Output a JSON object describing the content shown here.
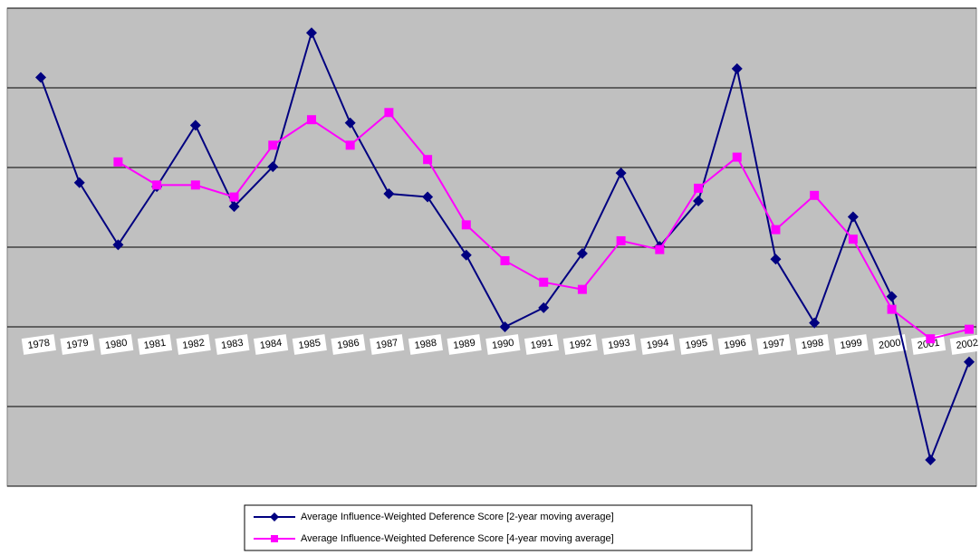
{
  "chart_data": {
    "type": "line",
    "categories": [
      "1978",
      "1979",
      "1980",
      "1981",
      "1982",
      "1983",
      "1984",
      "1985",
      "1986",
      "1987",
      "1988",
      "1989",
      "1990",
      "1991",
      "1992",
      "1993",
      "1994",
      "1995",
      "1996",
      "1997",
      "1998",
      "1999",
      "2000",
      "2001",
      "2002"
    ],
    "series": [
      {
        "name": "Average Influence-Weighted Deference Score [2-year moving average]",
        "color": "#000080",
        "marker": "diamond",
        "values": [
          3.13,
          1.81,
          1.03,
          1.76,
          2.53,
          1.51,
          2.01,
          3.69,
          2.56,
          1.67,
          1.63,
          0.9,
          0,
          0.24,
          0.92,
          1.93,
          1.01,
          1.58,
          3.24,
          0.85,
          0.05,
          1.38,
          0.38,
          -1.67,
          -0.44
        ]
      },
      {
        "name": "Average Influence-Weighted Deference Score [4-year moving average]",
        "color": "#ff00ff",
        "marker": "square",
        "values": [
          null,
          null,
          2.07,
          1.78,
          1.78,
          1.63,
          2.28,
          2.6,
          2.28,
          2.69,
          2.1,
          1.28,
          0.83,
          0.56,
          0.47,
          1.08,
          0.97,
          1.74,
          2.13,
          1.22,
          1.65,
          1.1,
          0.22,
          -0.15,
          -0.03
        ]
      }
    ],
    "ylim": [
      -2,
      4
    ],
    "yticks": [
      -2,
      -1,
      0,
      1,
      2,
      3,
      4
    ],
    "grid": true,
    "plot_background": "#c0c0c0",
    "legend": "bottom"
  }
}
